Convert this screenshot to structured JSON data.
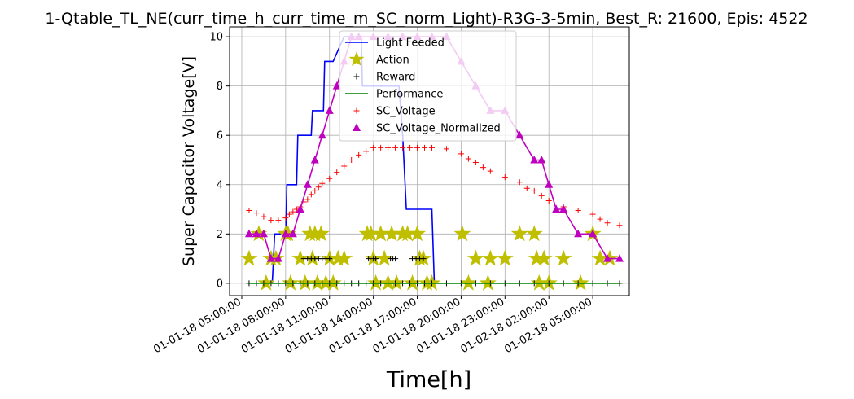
{
  "chart_data": {
    "type": "line",
    "title": "1-Qtable_TL_NE(curr_time_h_curr_time_m_SC_norm_Light)-R3G-3-5min, Best_R: 21600, Epis: 4522",
    "xlabel": "Time[h]",
    "ylabel": "Super Capacitor Voltage[V]",
    "xlim": [
      "01-01-18 04:10",
      "01-02-18 07:30"
    ],
    "ylim": [
      -0.5,
      10.4
    ],
    "x_ticks": [
      "01-01-18 05:00:00",
      "01-01-18 08:00:00",
      "01-01-18 11:00:00",
      "01-01-18 14:00:00",
      "01-01-18 17:00:00",
      "01-01-18 20:00:00",
      "01-01-18 23:00:00",
      "01-02-18 02:00:00",
      "01-02-18 05:00:00"
    ],
    "y_ticks": [
      0,
      2,
      4,
      6,
      8,
      10
    ],
    "grid": true,
    "legend_position": "top-center",
    "series": [
      {
        "name": "Light Feeded",
        "color": "#0000ff",
        "style": "line",
        "points": [
          [
            "01-01-18 07:05",
            0
          ],
          [
            "01-01-18 07:15",
            2
          ],
          [
            "01-01-18 08:00",
            2
          ],
          [
            "01-01-18 08:05",
            4
          ],
          [
            "01-01-18 08:45",
            4
          ],
          [
            "01-01-18 08:50",
            6
          ],
          [
            "01-01-18 09:45",
            6
          ],
          [
            "01-01-18 09:50",
            7
          ],
          [
            "01-01-18 10:35",
            7
          ],
          [
            "01-01-18 10:40",
            9
          ],
          [
            "01-01-18 11:15",
            9
          ],
          [
            "01-01-18 12:00",
            10
          ],
          [
            "01-01-18 13:10",
            10
          ],
          [
            "01-01-18 13:15",
            8
          ],
          [
            "01-01-18 15:45",
            8
          ],
          [
            "01-01-18 16:00",
            6
          ],
          [
            "01-01-18 16:15",
            3
          ],
          [
            "01-01-18 18:00",
            3
          ],
          [
            "01-01-18 18:10",
            0
          ]
        ]
      },
      {
        "name": "Action",
        "color": "#bfbf00",
        "style": "star",
        "points": [
          [
            "01-01-18 05:30",
            1
          ],
          [
            "01-01-18 06:10",
            2
          ],
          [
            "01-01-18 06:40",
            0
          ],
          [
            "01-01-18 07:00",
            1
          ],
          [
            "01-01-18 07:20",
            1
          ],
          [
            "01-01-18 08:00",
            2
          ],
          [
            "01-01-18 08:10",
            2
          ],
          [
            "01-01-18 08:20",
            0
          ],
          [
            "01-01-18 09:00",
            1
          ],
          [
            "01-01-18 09:20",
            0
          ],
          [
            "01-01-18 09:40",
            2
          ],
          [
            "01-01-18 09:50",
            1
          ],
          [
            "01-01-18 10:00",
            2
          ],
          [
            "01-01-18 10:10",
            0
          ],
          [
            "01-01-18 10:25",
            2
          ],
          [
            "01-01-18 10:45",
            0
          ],
          [
            "01-01-18 11:00",
            1
          ],
          [
            "01-01-18 11:15",
            0
          ],
          [
            "01-01-18 11:35",
            1
          ],
          [
            "01-01-18 12:00",
            1
          ],
          [
            "01-01-18 13:35",
            2
          ],
          [
            "01-01-18 13:50",
            2
          ],
          [
            "01-01-18 14:00",
            1
          ],
          [
            "01-01-18 14:10",
            0
          ],
          [
            "01-01-18 14:30",
            2
          ],
          [
            "01-01-18 14:45",
            1
          ],
          [
            "01-01-18 15:00",
            0
          ],
          [
            "01-01-18 15:15",
            2
          ],
          [
            "01-01-18 15:35",
            0
          ],
          [
            "01-01-18 16:00",
            2
          ],
          [
            "01-01-18 16:20",
            2
          ],
          [
            "01-01-18 16:40",
            0
          ],
          [
            "01-01-18 17:00",
            2
          ],
          [
            "01-01-18 17:10",
            1
          ],
          [
            "01-01-18 17:25",
            1
          ],
          [
            "01-01-18 17:40",
            0
          ],
          [
            "01-01-18 18:00",
            0
          ],
          [
            "01-01-18 20:05",
            2
          ],
          [
            "01-01-18 20:30",
            0
          ],
          [
            "01-01-18 21:00",
            1
          ],
          [
            "01-01-18 21:50",
            0
          ],
          [
            "01-01-18 22:00",
            1
          ],
          [
            "01-01-18 23:00",
            1
          ],
          [
            "01-01-18 00:00",
            2
          ],
          [
            "01-01-18 01:10",
            1
          ],
          [
            "01-02-18 01:00",
            2
          ],
          [
            "01-02-18 01:20",
            0
          ],
          [
            "01-02-18 01:40",
            1
          ],
          [
            "01-02-18 02:00",
            0
          ],
          [
            "01-02-18 03:00",
            1
          ],
          [
            "01-02-18 04:10",
            0
          ],
          [
            "01-02-18 05:00",
            2
          ],
          [
            "01-02-18 05:30",
            1
          ],
          [
            "01-02-18 06:10",
            1
          ]
        ]
      },
      {
        "name": "Reward",
        "color": "#000000",
        "style": "plus",
        "points": [
          [
            "01-01-18 05:30",
            0
          ],
          [
            "01-01-18 06:00",
            0
          ],
          [
            "01-01-18 06:30",
            0
          ],
          [
            "01-01-18 07:00",
            0
          ],
          [
            "01-01-18 07:30",
            0
          ],
          [
            "01-01-18 08:00",
            0
          ],
          [
            "01-01-18 08:30",
            0
          ],
          [
            "01-01-18 09:00",
            0
          ],
          [
            "01-01-18 09:15",
            0
          ],
          [
            "01-01-18 09:30",
            0
          ],
          [
            "01-01-18 10:00",
            0
          ],
          [
            "01-01-18 10:30",
            0
          ],
          [
            "01-01-18 11:00",
            0
          ],
          [
            "01-01-18 11:30",
            0
          ],
          [
            "01-01-18 12:00",
            0
          ],
          [
            "01-01-18 12:30",
            0
          ],
          [
            "01-01-18 13:00",
            0
          ],
          [
            "01-01-18 13:30",
            0
          ],
          [
            "01-01-18 14:00",
            0
          ],
          [
            "01-01-18 14:30",
            0
          ],
          [
            "01-01-18 15:00",
            0
          ],
          [
            "01-01-18 15:30",
            0
          ],
          [
            "01-01-18 16:00",
            0
          ],
          [
            "01-01-18 16:30",
            0
          ],
          [
            "01-01-18 17:00",
            0
          ],
          [
            "01-01-18 17:30",
            0
          ],
          [
            "01-01-18 18:00",
            0
          ],
          [
            "01-01-18 19:00",
            0
          ],
          [
            "01-01-18 20:00",
            0
          ],
          [
            "01-01-18 21:00",
            0
          ],
          [
            "01-01-18 22:00",
            0
          ],
          [
            "01-01-18 23:00",
            0
          ],
          [
            "01-02-18 00:00",
            0
          ],
          [
            "01-02-18 01:00",
            0
          ],
          [
            "01-02-18 02:00",
            0
          ],
          [
            "01-02-18 03:00",
            0
          ],
          [
            "01-02-18 04:00",
            0
          ],
          [
            "01-02-18 05:00",
            0
          ],
          [
            "01-02-18 06:00",
            0
          ],
          [
            "01-02-18 06:50",
            0
          ],
          [
            "01-01-18 09:15",
            1
          ],
          [
            "01-01-18 09:30",
            1
          ],
          [
            "01-01-18 09:45",
            1
          ],
          [
            "01-01-18 10:00",
            1
          ],
          [
            "01-01-18 10:15",
            1
          ],
          [
            "01-01-18 10:30",
            1
          ],
          [
            "01-01-18 10:45",
            1
          ],
          [
            "01-01-18 11:00",
            1
          ],
          [
            "01-01-18 13:40",
            1
          ],
          [
            "01-01-18 14:00",
            1
          ],
          [
            "01-01-18 14:10",
            1
          ],
          [
            "01-01-18 15:10",
            1
          ],
          [
            "01-01-18 15:20",
            1
          ],
          [
            "01-01-18 15:30",
            1
          ],
          [
            "01-01-18 16:40",
            1
          ],
          [
            "01-01-18 16:55",
            1
          ],
          [
            "01-01-18 17:10",
            1
          ],
          [
            "01-01-18 17:25",
            1
          ]
        ]
      },
      {
        "name": "Performance",
        "color": "#008000",
        "style": "line",
        "points": [
          [
            "01-01-18 05:30",
            0
          ],
          [
            "01-02-18 06:50",
            0
          ]
        ]
      },
      {
        "name": "SC_Voltage",
        "color": "#ff0000",
        "style": "plus",
        "points": [
          [
            "01-01-18 05:30",
            2.95
          ],
          [
            "01-01-18 06:00",
            2.85
          ],
          [
            "01-01-18 06:30",
            2.7
          ],
          [
            "01-01-18 07:00",
            2.55
          ],
          [
            "01-01-18 07:30",
            2.55
          ],
          [
            "01-01-18 08:00",
            2.65
          ],
          [
            "01-01-18 08:15",
            2.8
          ],
          [
            "01-01-18 08:30",
            2.9
          ],
          [
            "01-01-18 08:45",
            3.0
          ],
          [
            "01-01-18 09:00",
            3.1
          ],
          [
            "01-01-18 09:15",
            3.3
          ],
          [
            "01-01-18 09:30",
            3.4
          ],
          [
            "01-01-18 09:45",
            3.6
          ],
          [
            "01-01-18 10:00",
            3.75
          ],
          [
            "01-01-18 10:15",
            3.9
          ],
          [
            "01-01-18 10:30",
            4.05
          ],
          [
            "01-01-18 11:00",
            4.25
          ],
          [
            "01-01-18 11:30",
            4.5
          ],
          [
            "01-01-18 12:00",
            4.75
          ],
          [
            "01-01-18 12:30",
            5.0
          ],
          [
            "01-01-18 13:00",
            5.2
          ],
          [
            "01-01-18 13:30",
            5.35
          ],
          [
            "01-01-18 14:00",
            5.5
          ],
          [
            "01-01-18 14:30",
            5.5
          ],
          [
            "01-01-18 15:00",
            5.5
          ],
          [
            "01-01-18 15:30",
            5.5
          ],
          [
            "01-01-18 16:00",
            5.5
          ],
          [
            "01-01-18 16:30",
            5.5
          ],
          [
            "01-01-18 17:00",
            5.5
          ],
          [
            "01-01-18 17:30",
            5.5
          ],
          [
            "01-01-18 18:00",
            5.5
          ],
          [
            "01-01-18 19:00",
            5.45
          ],
          [
            "01-01-18 20:00",
            5.25
          ],
          [
            "01-01-18 20:30",
            5.05
          ],
          [
            "01-01-18 21:00",
            4.9
          ],
          [
            "01-01-18 21:30",
            4.7
          ],
          [
            "01-01-18 22:00",
            4.55
          ],
          [
            "01-01-18 23:00",
            4.3
          ],
          [
            "01-02-18 00:00",
            4.1
          ],
          [
            "01-02-18 00:30",
            3.85
          ],
          [
            "01-02-18 01:00",
            3.75
          ],
          [
            "01-02-18 01:30",
            3.55
          ],
          [
            "01-02-18 02:00",
            3.35
          ],
          [
            "01-02-18 03:00",
            3.1
          ],
          [
            "01-02-18 04:00",
            2.95
          ],
          [
            "01-02-18 05:00",
            2.8
          ],
          [
            "01-02-18 05:30",
            2.6
          ],
          [
            "01-02-18 06:00",
            2.45
          ],
          [
            "01-02-18 06:50",
            2.35
          ]
        ]
      },
      {
        "name": "SC_Voltage_Normalized",
        "color": "#bf00bf",
        "style": "line-triangle",
        "points": [
          [
            "01-01-18 05:30",
            2
          ],
          [
            "01-01-18 06:00",
            2
          ],
          [
            "01-01-18 06:30",
            2
          ],
          [
            "01-01-18 07:00",
            1
          ],
          [
            "01-01-18 07:30",
            1
          ],
          [
            "01-01-18 08:00",
            2
          ],
          [
            "01-01-18 08:30",
            2
          ],
          [
            "01-01-18 09:00",
            3
          ],
          [
            "01-01-18 09:30",
            4
          ],
          [
            "01-01-18 10:00",
            5
          ],
          [
            "01-01-18 10:30",
            6
          ],
          [
            "01-01-18 11:00",
            7
          ],
          [
            "01-01-18 11:30",
            8
          ],
          [
            "01-01-18 12:00",
            9
          ],
          [
            "01-01-18 12:30",
            10
          ],
          [
            "01-01-18 13:00",
            10
          ],
          [
            "01-01-18 14:00",
            10
          ],
          [
            "01-01-18 15:00",
            10
          ],
          [
            "01-01-18 16:00",
            10
          ],
          [
            "01-01-18 17:00",
            10
          ],
          [
            "01-01-18 18:00",
            10
          ],
          [
            "01-01-18 19:00",
            10
          ],
          [
            "01-01-18 20:00",
            9
          ],
          [
            "01-01-18 21:00",
            8
          ],
          [
            "01-01-18 22:00",
            7
          ],
          [
            "01-01-18 23:00",
            7
          ],
          [
            "01-02-18 00:00",
            6
          ],
          [
            "01-02-18 01:00",
            5
          ],
          [
            "01-02-18 01:30",
            5
          ],
          [
            "01-02-18 02:00",
            4
          ],
          [
            "01-02-18 02:30",
            3
          ],
          [
            "01-02-18 03:00",
            3
          ],
          [
            "01-02-18 04:00",
            2
          ],
          [
            "01-02-18 05:00",
            2
          ],
          [
            "01-02-18 06:00",
            1
          ],
          [
            "01-02-18 06:50",
            1
          ]
        ]
      }
    ]
  }
}
